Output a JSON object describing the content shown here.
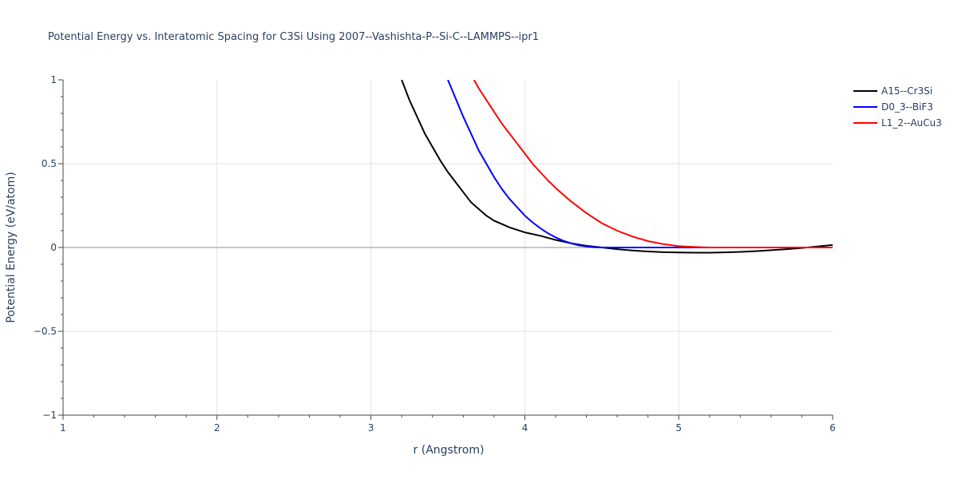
{
  "chart_data": {
    "type": "line",
    "title": "Potential Energy vs. Interatomic Spacing for C3Si Using 2007--Vashishta-P--Si-C--LAMMPS--ipr1",
    "xlabel": "r (Angstrom)",
    "ylabel": "Potential Energy (eV/atom)",
    "xlim": [
      1,
      6
    ],
    "ylim": [
      -1,
      1
    ],
    "xticks": [
      1,
      2,
      3,
      4,
      5,
      6
    ],
    "yticks": [
      -1,
      -0.5,
      0,
      0.5,
      1
    ],
    "xtick_labels": [
      "1",
      "2",
      "3",
      "4",
      "5",
      "6"
    ],
    "ytick_labels": [
      "−1",
      "−0.5",
      "0",
      "0.5",
      "1"
    ],
    "grid": true,
    "legend_position": "top-right",
    "series": [
      {
        "name": "A15--Cr3Si",
        "color": "#000000",
        "x": [
          3.2,
          3.25,
          3.3,
          3.35,
          3.4,
          3.45,
          3.5,
          3.55,
          3.6,
          3.65,
          3.7,
          3.75,
          3.8,
          3.85,
          3.9,
          3.95,
          4.0,
          4.1,
          4.2,
          4.3,
          4.4,
          4.5,
          4.6,
          4.7,
          4.8,
          4.9,
          5.0,
          5.1,
          5.2,
          5.3,
          5.4,
          5.5,
          5.6,
          5.7,
          5.8,
          5.9,
          6.0
        ],
        "y": [
          1.0,
          0.88,
          0.78,
          0.68,
          0.6,
          0.52,
          0.45,
          0.39,
          0.33,
          0.27,
          0.23,
          0.19,
          0.16,
          0.14,
          0.12,
          0.105,
          0.09,
          0.07,
          0.045,
          0.025,
          0.01,
          0.0,
          -0.01,
          -0.018,
          -0.024,
          -0.028,
          -0.03,
          -0.031,
          -0.031,
          -0.029,
          -0.026,
          -0.022,
          -0.016,
          -0.01,
          -0.003,
          0.006,
          0.015
        ]
      },
      {
        "name": "D0_3--BiF3",
        "color": "#0000ff",
        "x": [
          3.5,
          3.55,
          3.6,
          3.65,
          3.7,
          3.75,
          3.8,
          3.85,
          3.9,
          3.95,
          4.0,
          4.05,
          4.1,
          4.15,
          4.2,
          4.25,
          4.3,
          4.35,
          4.4,
          4.45,
          4.5,
          4.6,
          4.8,
          5.0,
          5.2
        ],
        "y": [
          1.0,
          0.89,
          0.78,
          0.68,
          0.58,
          0.5,
          0.42,
          0.35,
          0.29,
          0.24,
          0.19,
          0.15,
          0.115,
          0.085,
          0.06,
          0.04,
          0.025,
          0.013,
          0.006,
          0.002,
          0.0,
          0.0,
          0.0,
          0.0,
          0.0
        ]
      },
      {
        "name": "L1_2--AuCu3",
        "color": "#ff0000",
        "x": [
          3.67,
          3.7,
          3.75,
          3.8,
          3.85,
          3.9,
          3.95,
          4.0,
          4.05,
          4.1,
          4.15,
          4.2,
          4.25,
          4.3,
          4.35,
          4.4,
          4.45,
          4.5,
          4.6,
          4.7,
          4.8,
          4.9,
          5.0,
          5.1,
          5.2,
          5.5,
          6.0
        ],
        "y": [
          1.0,
          0.95,
          0.88,
          0.81,
          0.74,
          0.68,
          0.62,
          0.56,
          0.5,
          0.45,
          0.4,
          0.355,
          0.315,
          0.275,
          0.24,
          0.205,
          0.175,
          0.145,
          0.1,
          0.065,
          0.038,
          0.02,
          0.008,
          0.003,
          0.0,
          0.0,
          0.0
        ]
      }
    ]
  }
}
